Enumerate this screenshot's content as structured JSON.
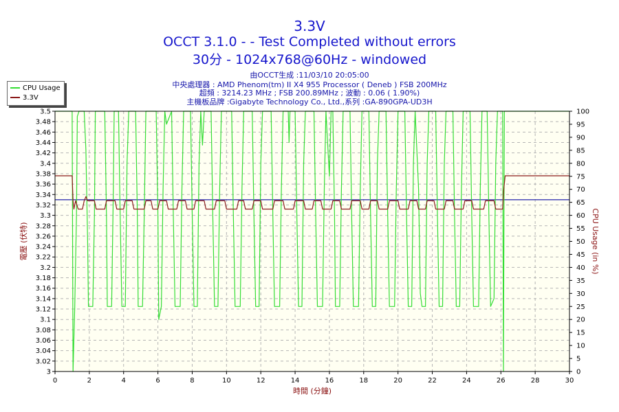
{
  "header": {
    "title": "3.3V",
    "subtitle": "OCCT 3.1.0 -  - Test Completed without errors",
    "config": "30分 - 1024x768@60Hz - windowed",
    "generated": "由OCCT生成 :11/03/10 20:05:00",
    "cpu": "中央處理器 : AMD Phenom(tm) II X4 955 Processor ( Deneb ) FSB 200MHz",
    "clock": "超頻 : 3214.23 MHz ; FSB 200.89MHz ; 波動 : 0.06 ( 1.90%)",
    "board": "主機板品牌 :Gigabyte Technology Co., Ltd.,系列 :GA-890GPA-UD3H"
  },
  "colors": {
    "cpu_usage": "#33dd33",
    "voltage": "#8b1a1a",
    "reference": "#2222aa",
    "plot_bg": "#fffff2",
    "grid": "#b4b4b4"
  },
  "chart_data": {
    "type": "line",
    "xlabel": "時間 (分鐘)",
    "ylabel_left": "電壓 (伏特)",
    "ylabel_right": "CPU Usage (in %)",
    "xlim": [
      0,
      30
    ],
    "ylim_left": [
      3.0,
      3.5
    ],
    "ylim_right": [
      0,
      100
    ],
    "x_ticks": [
      "0",
      "2",
      "4",
      "6",
      "8",
      "10",
      "12",
      "14",
      "16",
      "18",
      "20",
      "22",
      "24",
      "26",
      "28",
      "30"
    ],
    "y_ticks_left": [
      "3",
      "3.02",
      "3.04",
      "3.06",
      "3.08",
      "3.1",
      "3.12",
      "3.14",
      "3.16",
      "3.18",
      "3.2",
      "3.22",
      "3.24",
      "3.26",
      "3.28",
      "3.3",
      "3.32",
      "3.34",
      "3.36",
      "3.38",
      "3.4",
      "3.42",
      "3.44",
      "3.46",
      "3.48",
      "3.5"
    ],
    "y_ticks_right": [
      "0",
      "5",
      "10",
      "15",
      "20",
      "25",
      "30",
      "35",
      "40",
      "45",
      "50",
      "55",
      "60",
      "65",
      "70",
      "75",
      "80",
      "85",
      "90",
      "95",
      "100"
    ],
    "grid": true,
    "legend_position": "top-left",
    "series": [
      {
        "name": "CPU Usage",
        "axis": "right",
        "points": [
          [
            0,
            100
          ],
          [
            1.0,
            100
          ],
          [
            1.05,
            0
          ],
          [
            1.15,
            25
          ],
          [
            1.25,
            60
          ],
          [
            1.3,
            98
          ],
          [
            1.4,
            100
          ],
          [
            1.7,
            100
          ],
          [
            1.8,
            85
          ],
          [
            1.9,
            50
          ],
          [
            1.95,
            25
          ],
          [
            2.2,
            25
          ],
          [
            2.3,
            60
          ],
          [
            2.35,
            100
          ],
          [
            2.9,
            100
          ],
          [
            3.0,
            60
          ],
          [
            3.05,
            25
          ],
          [
            3.3,
            25
          ],
          [
            3.4,
            70
          ],
          [
            3.45,
            100
          ],
          [
            3.7,
            100
          ],
          [
            3.8,
            60
          ],
          [
            3.9,
            25
          ],
          [
            4.1,
            25
          ],
          [
            4.2,
            80
          ],
          [
            4.3,
            100
          ],
          [
            4.7,
            100
          ],
          [
            4.8,
            60
          ],
          [
            4.85,
            25
          ],
          [
            5.1,
            25
          ],
          [
            5.2,
            60
          ],
          [
            5.3,
            100
          ],
          [
            5.9,
            100
          ],
          [
            6.0,
            60
          ],
          [
            6.05,
            20
          ],
          [
            6.2,
            25
          ],
          [
            6.3,
            70
          ],
          [
            6.4,
            100
          ],
          [
            6.5,
            95
          ],
          [
            6.8,
            100
          ],
          [
            6.9,
            60
          ],
          [
            7.0,
            25
          ],
          [
            7.3,
            25
          ],
          [
            7.4,
            70
          ],
          [
            7.5,
            100
          ],
          [
            7.9,
            100
          ],
          [
            8.0,
            60
          ],
          [
            8.1,
            25
          ],
          [
            8.3,
            25
          ],
          [
            8.4,
            80
          ],
          [
            8.5,
            100
          ],
          [
            8.6,
            87
          ],
          [
            8.7,
            100
          ],
          [
            9.1,
            100
          ],
          [
            9.2,
            60
          ],
          [
            9.3,
            25
          ],
          [
            9.5,
            25
          ],
          [
            9.6,
            70
          ],
          [
            9.7,
            100
          ],
          [
            10.3,
            100
          ],
          [
            10.4,
            60
          ],
          [
            10.5,
            25
          ],
          [
            10.8,
            25
          ],
          [
            10.9,
            70
          ],
          [
            11.0,
            100
          ],
          [
            11.5,
            100
          ],
          [
            11.6,
            60
          ],
          [
            11.7,
            25
          ],
          [
            11.9,
            25
          ],
          [
            12.0,
            80
          ],
          [
            12.1,
            100
          ],
          [
            12.6,
            100
          ],
          [
            12.7,
            60
          ],
          [
            12.8,
            25
          ],
          [
            13.1,
            25
          ],
          [
            13.2,
            70
          ],
          [
            13.3,
            100
          ],
          [
            13.6,
            100
          ],
          [
            13.65,
            88
          ],
          [
            13.7,
            100
          ],
          [
            14.0,
            100
          ],
          [
            14.1,
            60
          ],
          [
            14.2,
            25
          ],
          [
            14.4,
            25
          ],
          [
            14.5,
            80
          ],
          [
            14.6,
            100
          ],
          [
            15.1,
            100
          ],
          [
            15.2,
            60
          ],
          [
            15.3,
            25
          ],
          [
            15.6,
            25
          ],
          [
            15.7,
            70
          ],
          [
            15.8,
            100
          ],
          [
            16.0,
            75
          ],
          [
            16.1,
            100
          ],
          [
            16.2,
            100
          ],
          [
            16.3,
            60
          ],
          [
            16.35,
            25
          ],
          [
            16.6,
            25
          ],
          [
            16.7,
            70
          ],
          [
            16.8,
            100
          ],
          [
            17.2,
            100
          ],
          [
            17.3,
            60
          ],
          [
            17.4,
            25
          ],
          [
            17.7,
            25
          ],
          [
            17.8,
            70
          ],
          [
            17.9,
            100
          ],
          [
            18.3,
            100
          ],
          [
            18.4,
            60
          ],
          [
            18.5,
            25
          ],
          [
            18.7,
            25
          ],
          [
            18.8,
            80
          ],
          [
            18.9,
            100
          ],
          [
            19.3,
            100
          ],
          [
            19.4,
            60
          ],
          [
            19.5,
            25
          ],
          [
            19.8,
            25
          ],
          [
            19.9,
            70
          ],
          [
            20.0,
            100
          ],
          [
            20.4,
            100
          ],
          [
            20.5,
            60
          ],
          [
            20.6,
            25
          ],
          [
            20.8,
            25
          ],
          [
            20.9,
            80
          ],
          [
            21.0,
            100
          ],
          [
            21.2,
            70
          ],
          [
            21.3,
            30
          ],
          [
            21.4,
            25
          ],
          [
            21.6,
            25
          ],
          [
            21.7,
            80
          ],
          [
            21.8,
            100
          ],
          [
            22.2,
            100
          ],
          [
            22.3,
            60
          ],
          [
            22.4,
            25
          ],
          [
            22.6,
            25
          ],
          [
            22.7,
            80
          ],
          [
            22.8,
            100
          ],
          [
            23.2,
            100
          ],
          [
            23.3,
            60
          ],
          [
            23.4,
            25
          ],
          [
            23.6,
            25
          ],
          [
            23.7,
            70
          ],
          [
            23.8,
            100
          ],
          [
            24.2,
            100
          ],
          [
            24.3,
            60
          ],
          [
            24.4,
            25
          ],
          [
            24.7,
            25
          ],
          [
            24.8,
            70
          ],
          [
            24.9,
            100
          ],
          [
            25.2,
            100
          ],
          [
            25.3,
            60
          ],
          [
            25.4,
            25
          ],
          [
            25.6,
            28
          ],
          [
            25.7,
            80
          ],
          [
            25.8,
            100
          ],
          [
            26.1,
            100
          ],
          [
            26.15,
            0
          ],
          [
            26.2,
            100
          ],
          [
            30,
            100
          ]
        ]
      },
      {
        "name": "3.3V",
        "axis": "left",
        "points": [
          [
            0,
            3.376
          ],
          [
            0.9,
            3.376
          ],
          [
            1.0,
            3.376
          ],
          [
            1.05,
            3.328
          ],
          [
            1.1,
            3.312
          ],
          [
            1.2,
            3.328
          ],
          [
            1.35,
            3.312
          ],
          [
            1.6,
            3.312
          ],
          [
            1.7,
            3.328
          ],
          [
            1.8,
            3.336
          ],
          [
            1.9,
            3.328
          ],
          [
            2.3,
            3.328
          ],
          [
            2.4,
            3.312
          ],
          [
            2.9,
            3.312
          ],
          [
            3.0,
            3.328
          ],
          [
            3.5,
            3.328
          ],
          [
            3.6,
            3.312
          ],
          [
            4.0,
            3.312
          ],
          [
            4.1,
            3.328
          ],
          [
            4.5,
            3.328
          ],
          [
            4.6,
            3.312
          ],
          [
            5.2,
            3.312
          ],
          [
            5.3,
            3.328
          ],
          [
            5.6,
            3.328
          ],
          [
            5.7,
            3.312
          ],
          [
            6.0,
            3.312
          ],
          [
            6.1,
            3.328
          ],
          [
            6.5,
            3.328
          ],
          [
            6.6,
            3.312
          ],
          [
            7.1,
            3.312
          ],
          [
            7.2,
            3.328
          ],
          [
            7.6,
            3.328
          ],
          [
            7.7,
            3.312
          ],
          [
            8.1,
            3.312
          ],
          [
            8.2,
            3.328
          ],
          [
            8.7,
            3.328
          ],
          [
            8.8,
            3.312
          ],
          [
            9.3,
            3.312
          ],
          [
            9.4,
            3.328
          ],
          [
            9.9,
            3.328
          ],
          [
            10.0,
            3.312
          ],
          [
            10.6,
            3.312
          ],
          [
            10.7,
            3.328
          ],
          [
            11.0,
            3.328
          ],
          [
            11.1,
            3.312
          ],
          [
            11.5,
            3.312
          ],
          [
            11.6,
            3.328
          ],
          [
            12.0,
            3.328
          ],
          [
            12.1,
            3.312
          ],
          [
            12.7,
            3.312
          ],
          [
            12.8,
            3.328
          ],
          [
            13.3,
            3.328
          ],
          [
            13.4,
            3.312
          ],
          [
            13.9,
            3.312
          ],
          [
            14.0,
            3.328
          ],
          [
            14.5,
            3.328
          ],
          [
            14.6,
            3.312
          ],
          [
            15.0,
            3.312
          ],
          [
            15.1,
            3.328
          ],
          [
            15.5,
            3.328
          ],
          [
            15.6,
            3.312
          ],
          [
            16.1,
            3.312
          ],
          [
            16.2,
            3.328
          ],
          [
            16.6,
            3.328
          ],
          [
            16.7,
            3.312
          ],
          [
            17.2,
            3.312
          ],
          [
            17.3,
            3.328
          ],
          [
            17.8,
            3.328
          ],
          [
            17.9,
            3.312
          ],
          [
            18.3,
            3.312
          ],
          [
            18.4,
            3.328
          ],
          [
            18.8,
            3.328
          ],
          [
            18.9,
            3.312
          ],
          [
            19.4,
            3.312
          ],
          [
            19.5,
            3.328
          ],
          [
            20.0,
            3.328
          ],
          [
            20.1,
            3.312
          ],
          [
            20.6,
            3.312
          ],
          [
            20.7,
            3.328
          ],
          [
            21.1,
            3.328
          ],
          [
            21.2,
            3.312
          ],
          [
            21.6,
            3.312
          ],
          [
            21.7,
            3.328
          ],
          [
            22.1,
            3.328
          ],
          [
            22.2,
            3.312
          ],
          [
            22.7,
            3.312
          ],
          [
            22.8,
            3.328
          ],
          [
            23.2,
            3.328
          ],
          [
            23.3,
            3.312
          ],
          [
            23.8,
            3.312
          ],
          [
            23.9,
            3.328
          ],
          [
            24.3,
            3.328
          ],
          [
            24.4,
            3.312
          ],
          [
            25.0,
            3.312
          ],
          [
            25.1,
            3.328
          ],
          [
            25.6,
            3.328
          ],
          [
            25.7,
            3.312
          ],
          [
            26.1,
            3.312
          ],
          [
            26.15,
            3.344
          ],
          [
            26.25,
            3.376
          ],
          [
            30,
            3.376
          ]
        ]
      },
      {
        "axis": "left",
        "points": [
          [
            0,
            3.33
          ],
          [
            30,
            3.33
          ]
        ]
      }
    ]
  }
}
